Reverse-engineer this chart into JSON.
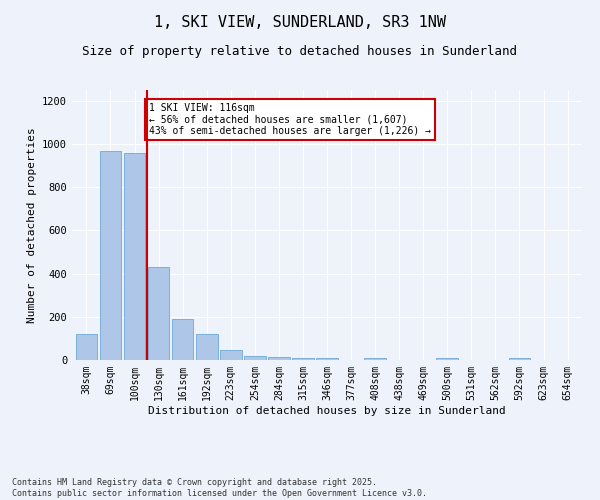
{
  "title": "1, SKI VIEW, SUNDERLAND, SR3 1NW",
  "subtitle": "Size of property relative to detached houses in Sunderland",
  "xlabel": "Distribution of detached houses by size in Sunderland",
  "ylabel": "Number of detached properties",
  "categories": [
    "38sqm",
    "69sqm",
    "100sqm",
    "130sqm",
    "161sqm",
    "192sqm",
    "223sqm",
    "254sqm",
    "284sqm",
    "315sqm",
    "346sqm",
    "377sqm",
    "408sqm",
    "438sqm",
    "469sqm",
    "500sqm",
    "531sqm",
    "562sqm",
    "592sqm",
    "623sqm",
    "654sqm"
  ],
  "values": [
    120,
    968,
    960,
    430,
    192,
    120,
    46,
    18,
    14,
    10,
    8,
    0,
    8,
    0,
    0,
    8,
    0,
    0,
    8,
    0,
    0
  ],
  "bar_color": "#aec6e8",
  "bar_edge_color": "#5a9fd4",
  "vline_x": 2.5,
  "vline_color": "#cc0000",
  "annotation_text": "1 SKI VIEW: 116sqm\n← 56% of detached houses are smaller (1,607)\n43% of semi-detached houses are larger (1,226) →",
  "annotation_box_color": "#cc0000",
  "background_color": "#eef2fa",
  "ylim": [
    0,
    1250
  ],
  "yticks": [
    0,
    200,
    400,
    600,
    800,
    1000,
    1200
  ],
  "footer": "Contains HM Land Registry data © Crown copyright and database right 2025.\nContains public sector information licensed under the Open Government Licence v3.0.",
  "title_fontsize": 11,
  "subtitle_fontsize": 9,
  "axis_label_fontsize": 8,
  "tick_fontsize": 7
}
